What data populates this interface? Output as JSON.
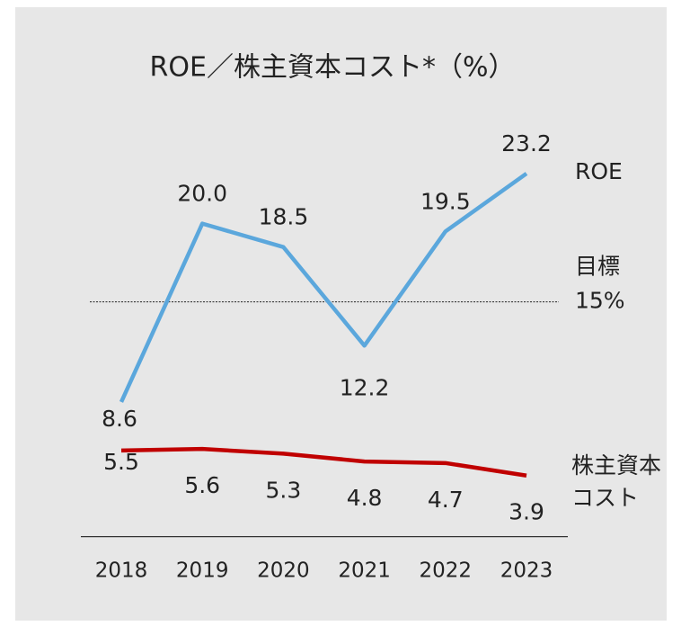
{
  "chart_data": {
    "type": "line",
    "title": "ROE／株主資本コスト*（%）",
    "categories": [
      "2018",
      "2019",
      "2020",
      "2021",
      "2022",
      "2023"
    ],
    "series": [
      {
        "name": "ROE",
        "color": "#5ba7dc",
        "values": [
          8.6,
          20.0,
          18.5,
          12.2,
          19.5,
          23.2
        ],
        "value_labels": [
          "8.6",
          "20.0",
          "18.5",
          "12.2",
          "19.5",
          "23.2"
        ]
      },
      {
        "name": "株主資本コスト",
        "color": "#c00000",
        "values": [
          5.5,
          5.6,
          5.3,
          4.8,
          4.7,
          3.9
        ]
      }
    ],
    "target_line": {
      "label": "目標",
      "value": 15,
      "value_label": "15%"
    },
    "ylim": [
      0,
      30
    ]
  }
}
